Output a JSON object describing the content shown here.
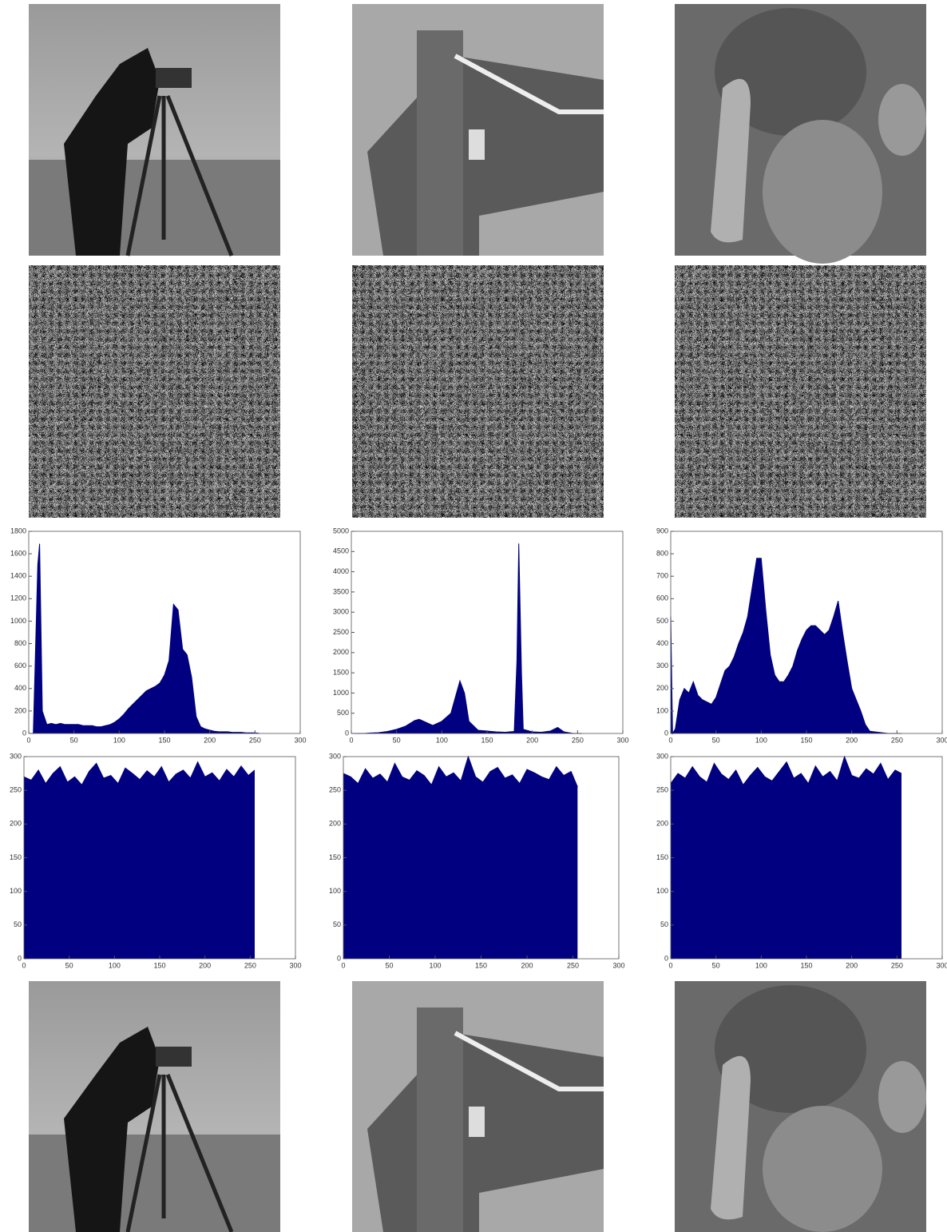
{
  "chart_data": [
    {
      "type": "area",
      "color": "#000080",
      "x": [
        0,
        5,
        10,
        12,
        15,
        20,
        25,
        30,
        35,
        40,
        45,
        50,
        55,
        60,
        65,
        70,
        75,
        80,
        85,
        90,
        95,
        100,
        105,
        110,
        115,
        120,
        125,
        130,
        135,
        140,
        145,
        150,
        155,
        160,
        165,
        170,
        175,
        180,
        185,
        190,
        195,
        200,
        205,
        210,
        215,
        220,
        225,
        230,
        235,
        240,
        245,
        250,
        255
      ],
      "values": [
        0,
        0,
        1500,
        1690,
        200,
        80,
        90,
        80,
        90,
        80,
        80,
        80,
        80,
        70,
        70,
        70,
        60,
        60,
        70,
        80,
        100,
        130,
        170,
        220,
        260,
        300,
        340,
        380,
        400,
        420,
        450,
        520,
        650,
        1150,
        1100,
        750,
        700,
        500,
        150,
        60,
        40,
        30,
        20,
        15,
        15,
        15,
        10,
        10,
        10,
        5,
        5,
        5,
        0
      ],
      "xlim": [
        0,
        300
      ],
      "xticks": [
        0,
        50,
        100,
        150,
        200,
        250,
        300
      ],
      "ylim": [
        0,
        1800
      ],
      "yticks": [
        0,
        200,
        400,
        600,
        800,
        1000,
        1200,
        1400,
        1600,
        1800
      ]
    },
    {
      "type": "area",
      "color": "#000080",
      "x": [
        0,
        15,
        20,
        30,
        40,
        50,
        60,
        70,
        75,
        80,
        90,
        100,
        110,
        115,
        120,
        125,
        130,
        140,
        150,
        160,
        170,
        180,
        183,
        185,
        188,
        190,
        200,
        210,
        220,
        228,
        235,
        245,
        255
      ],
      "values": [
        0,
        0,
        10,
        20,
        50,
        100,
        180,
        320,
        350,
        300,
        200,
        300,
        500,
        900,
        1300,
        1000,
        300,
        80,
        60,
        40,
        30,
        50,
        1800,
        4700,
        1500,
        100,
        40,
        30,
        60,
        150,
        40,
        0,
        0
      ],
      "xlim": [
        0,
        300
      ],
      "xticks": [
        0,
        50,
        100,
        150,
        200,
        250,
        300
      ],
      "ylim": [
        0,
        5000
      ],
      "yticks": [
        0,
        500,
        1000,
        1500,
        2000,
        2500,
        3000,
        3500,
        4000,
        4500,
        5000
      ]
    },
    {
      "type": "area",
      "color": "#000080",
      "x": [
        0,
        2,
        5,
        10,
        15,
        20,
        25,
        30,
        35,
        40,
        45,
        50,
        55,
        60,
        65,
        70,
        75,
        80,
        85,
        90,
        95,
        100,
        105,
        110,
        115,
        120,
        125,
        130,
        135,
        140,
        145,
        150,
        155,
        160,
        165,
        170,
        175,
        180,
        185,
        190,
        195,
        200,
        205,
        210,
        215,
        220,
        230,
        240,
        255
      ],
      "values": [
        520,
        0,
        20,
        150,
        200,
        180,
        230,
        170,
        150,
        140,
        130,
        160,
        220,
        280,
        300,
        340,
        400,
        450,
        520,
        650,
        780,
        780,
        550,
        350,
        260,
        230,
        230,
        260,
        300,
        370,
        420,
        460,
        480,
        480,
        460,
        440,
        460,
        520,
        590,
        450,
        320,
        200,
        150,
        100,
        40,
        10,
        5,
        0,
        0
      ],
      "xlim": [
        0,
        300
      ],
      "xticks": [
        0,
        50,
        100,
        150,
        200,
        250,
        300
      ],
      "ylim": [
        0,
        900
      ],
      "yticks": [
        0,
        100,
        200,
        300,
        400,
        500,
        600,
        700,
        800,
        900
      ]
    },
    {
      "type": "area",
      "color": "#000080",
      "x": [
        0,
        8,
        16,
        24,
        32,
        40,
        48,
        56,
        64,
        72,
        80,
        88,
        96,
        104,
        112,
        120,
        128,
        136,
        144,
        152,
        160,
        168,
        176,
        184,
        192,
        200,
        208,
        216,
        224,
        232,
        240,
        248,
        255
      ],
      "values": [
        270,
        265,
        280,
        260,
        275,
        285,
        262,
        270,
        258,
        278,
        290,
        268,
        272,
        260,
        283,
        275,
        266,
        279,
        270,
        285,
        262,
        274,
        280,
        268,
        292,
        270,
        276,
        264,
        281,
        270,
        286,
        272,
        280
      ],
      "xlim": [
        0,
        300
      ],
      "xticks": [
        0,
        50,
        100,
        150,
        200,
        250,
        300
      ],
      "ylim": [
        0,
        300
      ],
      "yticks": [
        0,
        50,
        100,
        150,
        200,
        250,
        300
      ]
    },
    {
      "type": "area",
      "color": "#000080",
      "x": [
        0,
        8,
        16,
        24,
        32,
        40,
        48,
        56,
        64,
        72,
        80,
        88,
        96,
        104,
        112,
        120,
        128,
        136,
        144,
        152,
        160,
        168,
        176,
        184,
        192,
        200,
        208,
        216,
        224,
        232,
        240,
        248,
        255
      ],
      "values": [
        275,
        270,
        260,
        282,
        268,
        274,
        262,
        290,
        270,
        265,
        279,
        272,
        258,
        285,
        270,
        276,
        264,
        300,
        270,
        262,
        278,
        284,
        268,
        273,
        260,
        281,
        276,
        270,
        266,
        285,
        272,
        278,
        255
      ],
      "xlim": [
        0,
        300
      ],
      "xticks": [
        0,
        50,
        100,
        150,
        200,
        250,
        300
      ],
      "ylim": [
        0,
        300
      ],
      "yticks": [
        0,
        50,
        100,
        150,
        200,
        250,
        300
      ]
    },
    {
      "type": "area",
      "color": "#000080",
      "x": [
        0,
        8,
        16,
        24,
        32,
        40,
        48,
        56,
        64,
        72,
        80,
        88,
        96,
        104,
        112,
        120,
        128,
        136,
        144,
        152,
        160,
        168,
        176,
        184,
        192,
        200,
        208,
        216,
        224,
        232,
        240,
        248,
        255
      ],
      "values": [
        260,
        275,
        268,
        285,
        270,
        262,
        290,
        274,
        266,
        280,
        258,
        272,
        284,
        270,
        264,
        278,
        292,
        268,
        275,
        260,
        286,
        270,
        278,
        264,
        300,
        272,
        268,
        282,
        274,
        290,
        266,
        280,
        275
      ],
      "xlim": [
        0,
        300
      ],
      "xticks": [
        0,
        50,
        100,
        150,
        200,
        250,
        300
      ],
      "ylim": [
        0,
        300
      ],
      "yticks": [
        0,
        50,
        100,
        150,
        200,
        250,
        300
      ]
    }
  ]
}
